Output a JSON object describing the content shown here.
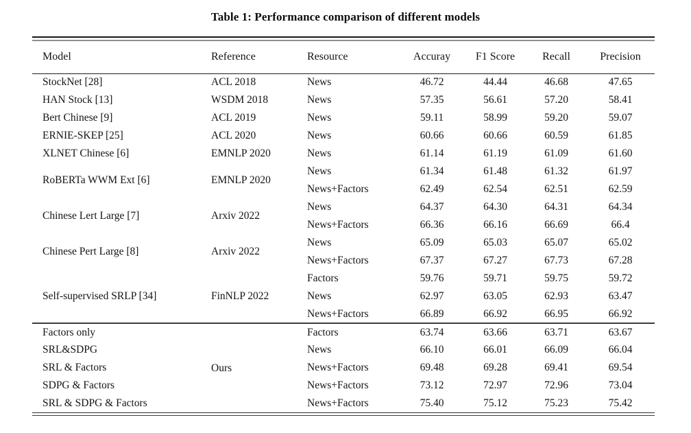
{
  "title": "Table 1: Performance comparison of different models",
  "header": {
    "model": "Model",
    "reference": "Reference",
    "resource": "Resource",
    "accuracy": "Accuray",
    "f1": "F1 Score",
    "recall": "Recall",
    "precision": "Precision"
  },
  "section1": [
    {
      "model": "StockNet [28]",
      "reference": "ACL 2018",
      "rows": [
        [
          "News",
          "46.72",
          "44.44",
          "46.68",
          "47.65"
        ]
      ]
    },
    {
      "model": "HAN Stock [13]",
      "reference": "WSDM 2018",
      "rows": [
        [
          "News",
          "57.35",
          "56.61",
          "57.20",
          "58.41"
        ]
      ]
    },
    {
      "model": "Bert Chinese [9]",
      "reference": "ACL 2019",
      "rows": [
        [
          "News",
          "59.11",
          "58.99",
          "59.20",
          "59.07"
        ]
      ]
    },
    {
      "model": "ERNIE-SKEP [25]",
      "reference": "ACL 2020",
      "rows": [
        [
          "News",
          "60.66",
          "60.66",
          "60.59",
          "61.85"
        ]
      ]
    },
    {
      "model": "XLNET Chinese [6]",
      "reference": "EMNLP 2020",
      "rows": [
        [
          "News",
          "61.14",
          "61.19",
          "61.09",
          "61.60"
        ]
      ]
    },
    {
      "model": "RoBERTa WWM Ext [6]",
      "reference": "EMNLP 2020",
      "rows": [
        [
          "News",
          "61.34",
          "61.48",
          "61.32",
          "61.97"
        ],
        [
          "News+Factors",
          "62.49",
          "62.54",
          "62.51",
          "62.59"
        ]
      ]
    },
    {
      "model": "Chinese Lert Large [7]",
      "reference": "Arxiv 2022",
      "rows": [
        [
          "News",
          "64.37",
          "64.30",
          "64.31",
          "64.34"
        ],
        [
          "News+Factors",
          "66.36",
          "66.16",
          "66.69",
          "66.4"
        ]
      ]
    },
    {
      "model": "Chinese Pert Large [8]",
      "reference": "Arxiv 2022",
      "rows": [
        [
          "News",
          "65.09",
          "65.03",
          "65.07",
          "65.02"
        ],
        [
          "News+Factors",
          "67.37",
          "67.27",
          "67.73",
          "67.28"
        ]
      ]
    },
    {
      "model": "Self-supervised SRLP [34]",
      "reference": "FinNLP 2022",
      "rows": [
        [
          "Factors",
          "59.76",
          "59.71",
          "59.75",
          "59.72"
        ],
        [
          "News",
          "62.97",
          "63.05",
          "62.93",
          "63.47"
        ],
        [
          "News+Factors",
          "66.89",
          "66.92",
          "66.95",
          "66.92"
        ]
      ]
    }
  ],
  "section2": {
    "reference": "Ours",
    "rows": [
      [
        "Factors only",
        "Factors",
        "63.74",
        "63.66",
        "63.71",
        "63.67"
      ],
      [
        "SRL&SDPG",
        "News",
        "66.10",
        "66.01",
        "66.09",
        "66.04"
      ],
      [
        "SRL & Factors",
        "News+Factors",
        "69.48",
        "69.28",
        "69.41",
        "69.54"
      ],
      [
        "SDPG & Factors",
        "News+Factors",
        "73.12",
        "72.97",
        "72.96",
        "73.04"
      ],
      [
        "SRL & SDPG & Factors",
        "News+Factors",
        "75.40",
        "75.12",
        "75.23",
        "75.42"
      ]
    ]
  }
}
